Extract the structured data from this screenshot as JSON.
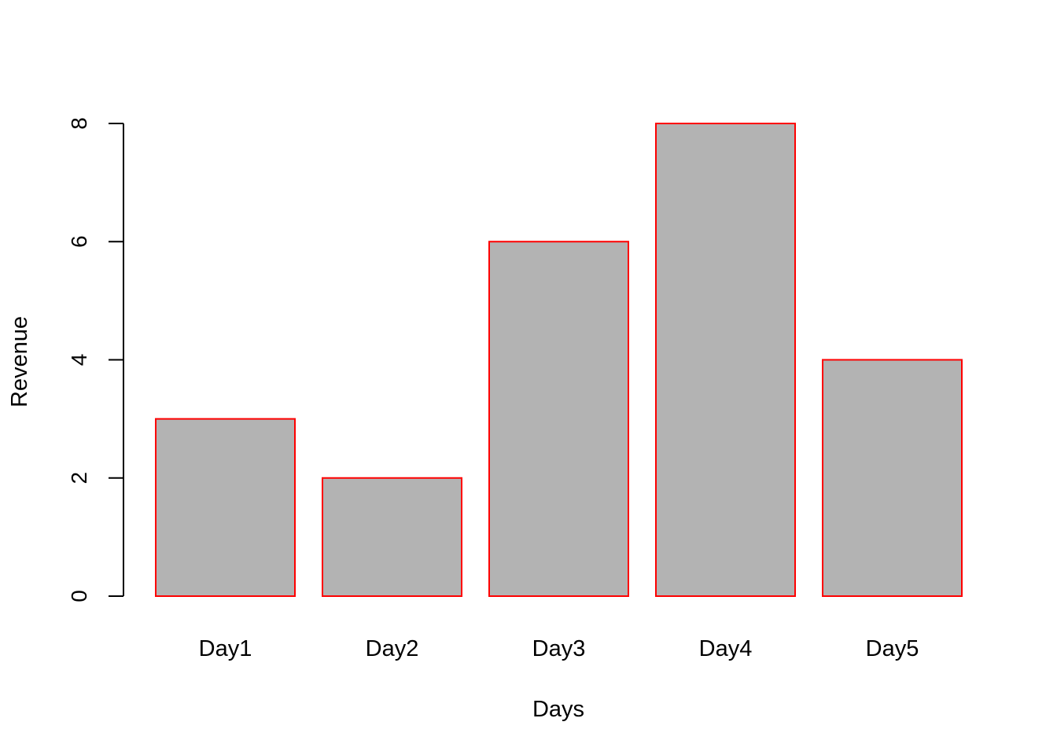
{
  "chart_data": {
    "type": "bar",
    "categories": [
      "Day1",
      "Day2",
      "Day3",
      "Day4",
      "Day5"
    ],
    "values": [
      3,
      2,
      6,
      8,
      4
    ],
    "title": "",
    "xlabel": "Days",
    "ylabel": "Revenue",
    "ylim": [
      0,
      8
    ],
    "yticks": [
      0,
      2,
      4,
      6,
      8
    ],
    "grid": false,
    "legend": "none",
    "bar_fill": "#b3b3b3",
    "bar_border": "#ff0000"
  }
}
